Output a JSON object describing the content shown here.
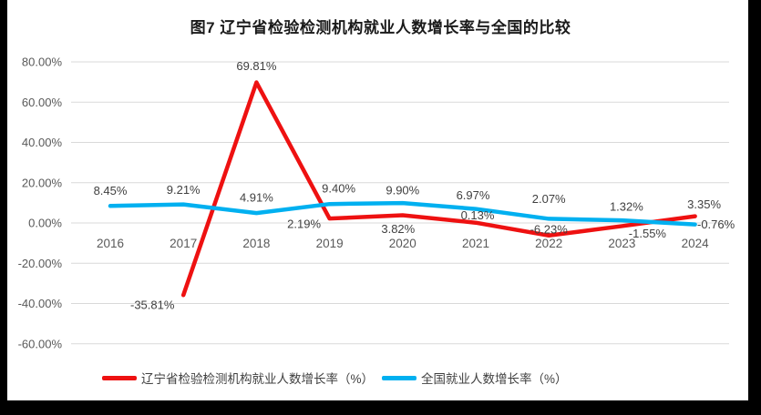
{
  "chart_data": {
    "type": "line",
    "title": "图7  辽宁省检验检测机构就业人数增长率与全国的比较",
    "categories": [
      "2016",
      "2017",
      "2018",
      "2019",
      "2020",
      "2021",
      "2022",
      "2023",
      "2024"
    ],
    "series": [
      {
        "name": "辽宁省检验检测机构就业人数增长率（%）",
        "color": "#EE1111",
        "values": [
          null,
          -35.81,
          69.81,
          2.19,
          3.82,
          0.13,
          -6.23,
          -1.55,
          3.35
        ],
        "data_labels": [
          "",
          "-35.81%",
          "69.81%",
          "2.19%",
          "3.82%",
          "0.13%",
          "-6.23%",
          "-1.55%",
          "3.35%"
        ],
        "label_offsets": [
          [
            0,
            0
          ],
          [
            -34,
            11
          ],
          [
            0,
            -18
          ],
          [
            -28,
            6
          ],
          [
            -5,
            15
          ],
          [
            2,
            -8
          ],
          [
            0,
            -7
          ],
          [
            28,
            8
          ],
          [
            10,
            -13
          ]
        ]
      },
      {
        "name": "全国就业人数增长率（%）",
        "color": "#00B0F0",
        "values": [
          8.45,
          9.21,
          4.91,
          9.4,
          9.9,
          6.97,
          2.07,
          1.32,
          -0.76
        ],
        "data_labels": [
          "8.45%",
          "9.21%",
          "4.91%",
          "9.40%",
          "9.90%",
          "6.97%",
          "2.07%",
          "1.32%",
          "-0.76%"
        ],
        "label_offsets": [
          [
            0,
            -17
          ],
          [
            0,
            -16
          ],
          [
            0,
            -17
          ],
          [
            10,
            -17
          ],
          [
            0,
            -14
          ],
          [
            -3,
            -15
          ],
          [
            0,
            -22
          ],
          [
            5,
            -15
          ],
          [
            23,
            0
          ]
        ]
      }
    ],
    "y_ticks": [
      "80.00%",
      "60.00%",
      "40.00%",
      "20.00%",
      "0.00%",
      "-20.00%",
      "-40.00%",
      "-60.00%"
    ],
    "ylim": [
      -60,
      80
    ],
    "grid": true,
    "legend_position": "bottom",
    "colors": {
      "gridline": "#D9D9D9",
      "axis_text": "#595959",
      "data_label_text": "#404040",
      "frame": "#000000"
    }
  }
}
